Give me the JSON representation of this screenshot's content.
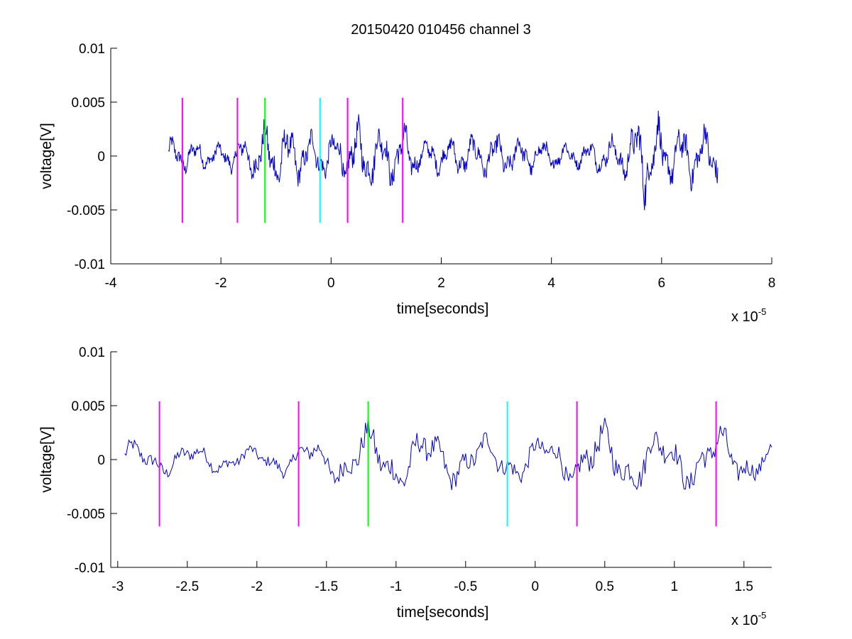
{
  "chart_data": [
    {
      "type": "line",
      "title": "20150420 010456 channel 3",
      "xlabel": "time[seconds]",
      "ylabel": "voltage[V]",
      "x_exponent_label": "x 10",
      "x_exponent": "-5",
      "xlim": [
        -4e-05,
        8e-05
      ],
      "ylim": [
        -0.01,
        0.01
      ],
      "xticks": [
        -4e-05,
        -2e-05,
        0,
        2e-05,
        4e-05,
        6e-05,
        8e-05
      ],
      "xtick_labels": [
        "-4",
        "-2",
        "0",
        "2",
        "4",
        "6",
        "8"
      ],
      "yticks": [
        0.01,
        0.005,
        0,
        -0.005,
        -0.01
      ],
      "ytick_labels": [
        "0.01",
        "0.005",
        "0",
        "-0.005",
        "-0.01"
      ],
      "signal": {
        "color": "#0000cc",
        "x_range": [
          -2.95e-05,
          7.02e-05
        ],
        "envelope": [
          [
            -2.95e-05,
            0.0018
          ],
          [
            -2e-05,
            0.0012
          ],
          [
            -1.5e-05,
            0.0022
          ],
          [
            -1.2e-05,
            0.0035
          ],
          [
            -5e-06,
            0.0025
          ],
          [
            0.0,
            0.0022
          ],
          [
            5e-06,
            0.0034
          ],
          [
            1e-05,
            0.0028
          ],
          [
            1.3e-05,
            0.0034
          ],
          [
            1.6e-05,
            0.0016
          ],
          [
            3e-05,
            0.0022
          ],
          [
            4.5e-05,
            0.0012
          ],
          [
            5.3e-05,
            0.0022
          ],
          [
            5.7e-05,
            0.0048
          ],
          [
            6.2e-05,
            0.0028
          ],
          [
            7.02e-05,
            0.0032
          ]
        ]
      },
      "markers": [
        {
          "x": -2.7e-05,
          "color": "#ff00ff",
          "ymin": -0.0062,
          "ymax": 0.0054
        },
        {
          "x": -1.7e-05,
          "color": "#ff00ff",
          "ymin": -0.0062,
          "ymax": 0.0054
        },
        {
          "x": -1.2e-05,
          "color": "#00ff00",
          "ymin": -0.0062,
          "ymax": 0.0054
        },
        {
          "x": -2e-06,
          "color": "#00ffff",
          "ymin": -0.0062,
          "ymax": 0.0054
        },
        {
          "x": 3e-06,
          "color": "#ff00ff",
          "ymin": -0.0062,
          "ymax": 0.0054
        },
        {
          "x": 1.3e-05,
          "color": "#ff00ff",
          "ymin": -0.0062,
          "ymax": 0.0054
        }
      ]
    },
    {
      "type": "line",
      "title": "",
      "xlabel": "time[seconds]",
      "ylabel": "voltage[V]",
      "x_exponent_label": "x 10",
      "x_exponent": "-5",
      "xlim": [
        -3.05e-05,
        1.7e-05
      ],
      "ylim": [
        -0.01,
        0.01
      ],
      "xticks": [
        -3e-05,
        -2.5e-05,
        -2e-05,
        -1.5e-05,
        -1e-05,
        -5e-06,
        0,
        5e-06,
        1e-05,
        1.5e-05
      ],
      "xtick_labels": [
        "-3",
        "-2.5",
        "-2",
        "-1.5",
        "-1",
        "-0.5",
        "0",
        "0.5",
        "1",
        "1.5"
      ],
      "yticks": [
        0.01,
        0.005,
        0,
        -0.005,
        -0.01
      ],
      "ytick_labels": [
        "0.01",
        "0.005",
        "0",
        "-0.005",
        "-0.01"
      ],
      "signal": {
        "color": "#0000cc",
        "x_range": [
          -2.95e-05,
          1.7e-05
        ],
        "envelope": [
          [
            -2.95e-05,
            0.0018
          ],
          [
            -2e-05,
            0.0012
          ],
          [
            -1.5e-05,
            0.0022
          ],
          [
            -1.2e-05,
            0.0035
          ],
          [
            -5e-06,
            0.0025
          ],
          [
            0.0,
            0.0022
          ],
          [
            5e-06,
            0.0034
          ],
          [
            1e-05,
            0.0028
          ],
          [
            1.3e-05,
            0.0034
          ],
          [
            1.7e-05,
            0.0016
          ]
        ]
      },
      "markers": [
        {
          "x": -2.7e-05,
          "color": "#ff00ff",
          "ymin": -0.0062,
          "ymax": 0.0054
        },
        {
          "x": -1.7e-05,
          "color": "#ff00ff",
          "ymin": -0.0062,
          "ymax": 0.0054
        },
        {
          "x": -1.2e-05,
          "color": "#00ff00",
          "ymin": -0.0062,
          "ymax": 0.0054
        },
        {
          "x": -2e-06,
          "color": "#00ffff",
          "ymin": -0.0062,
          "ymax": 0.0054
        },
        {
          "x": 3e-06,
          "color": "#ff00ff",
          "ymin": -0.0062,
          "ymax": 0.0054
        },
        {
          "x": 1.3e-05,
          "color": "#ff00ff",
          "ymin": -0.0062,
          "ymax": 0.0054
        }
      ]
    }
  ]
}
